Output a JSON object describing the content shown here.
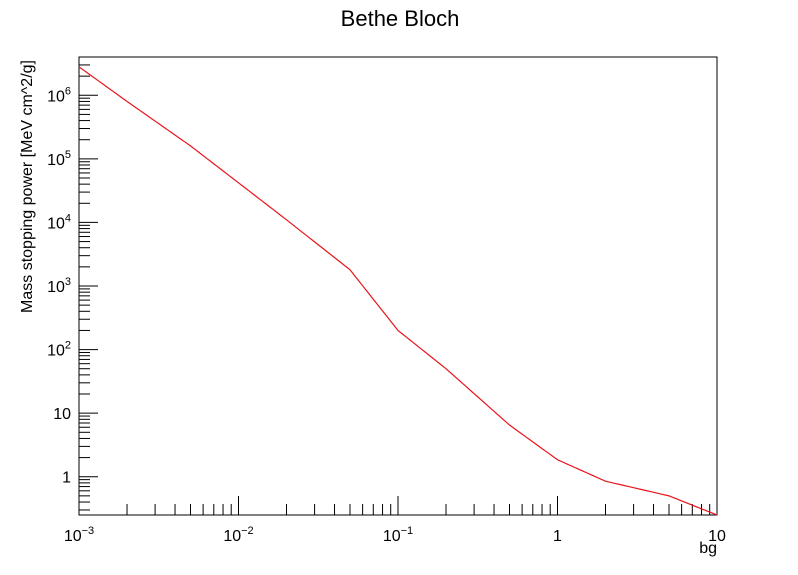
{
  "chart_data": {
    "type": "line",
    "title": "Bethe Bloch",
    "xlabel": "bg",
    "ylabel": "Mass stopping power [MeV cm^2/g]",
    "xscale": "log",
    "yscale": "log",
    "xlim": [
      0.001,
      10
    ],
    "ylim": [
      0.25,
      4000000
    ],
    "grid": false,
    "legend": "none",
    "x_ticks": [
      {
        "base": "10",
        "exp": "−3",
        "value": 0.001
      },
      {
        "base": "10",
        "exp": "−2",
        "value": 0.01
      },
      {
        "base": "10",
        "exp": "−1",
        "value": 0.1
      },
      {
        "base": "1",
        "exp": "",
        "value": 1
      },
      {
        "base": "10",
        "exp": "",
        "value": 10
      }
    ],
    "y_ticks": [
      {
        "base": "1",
        "exp": "",
        "value": 1
      },
      {
        "base": "10",
        "exp": "",
        "value": 10
      },
      {
        "base": "10",
        "exp": "2",
        "value": 100
      },
      {
        "base": "10",
        "exp": "3",
        "value": 1000
      },
      {
        "base": "10",
        "exp": "4",
        "value": 10000
      },
      {
        "base": "10",
        "exp": "5",
        "value": 100000
      },
      {
        "base": "10",
        "exp": "6",
        "value": 1000000
      }
    ],
    "series": [
      {
        "color": "#e8141b",
        "x": [
          0.001,
          0.002,
          0.005,
          0.01,
          0.02,
          0.05,
          0.1,
          0.2,
          0.5,
          1,
          2,
          5,
          10
        ],
        "y": [
          2800000,
          800000,
          160000,
          42000,
          11000,
          1800,
          200,
          50,
          6.5,
          1.85,
          0.85,
          0.5,
          0.25
        ]
      }
    ]
  }
}
